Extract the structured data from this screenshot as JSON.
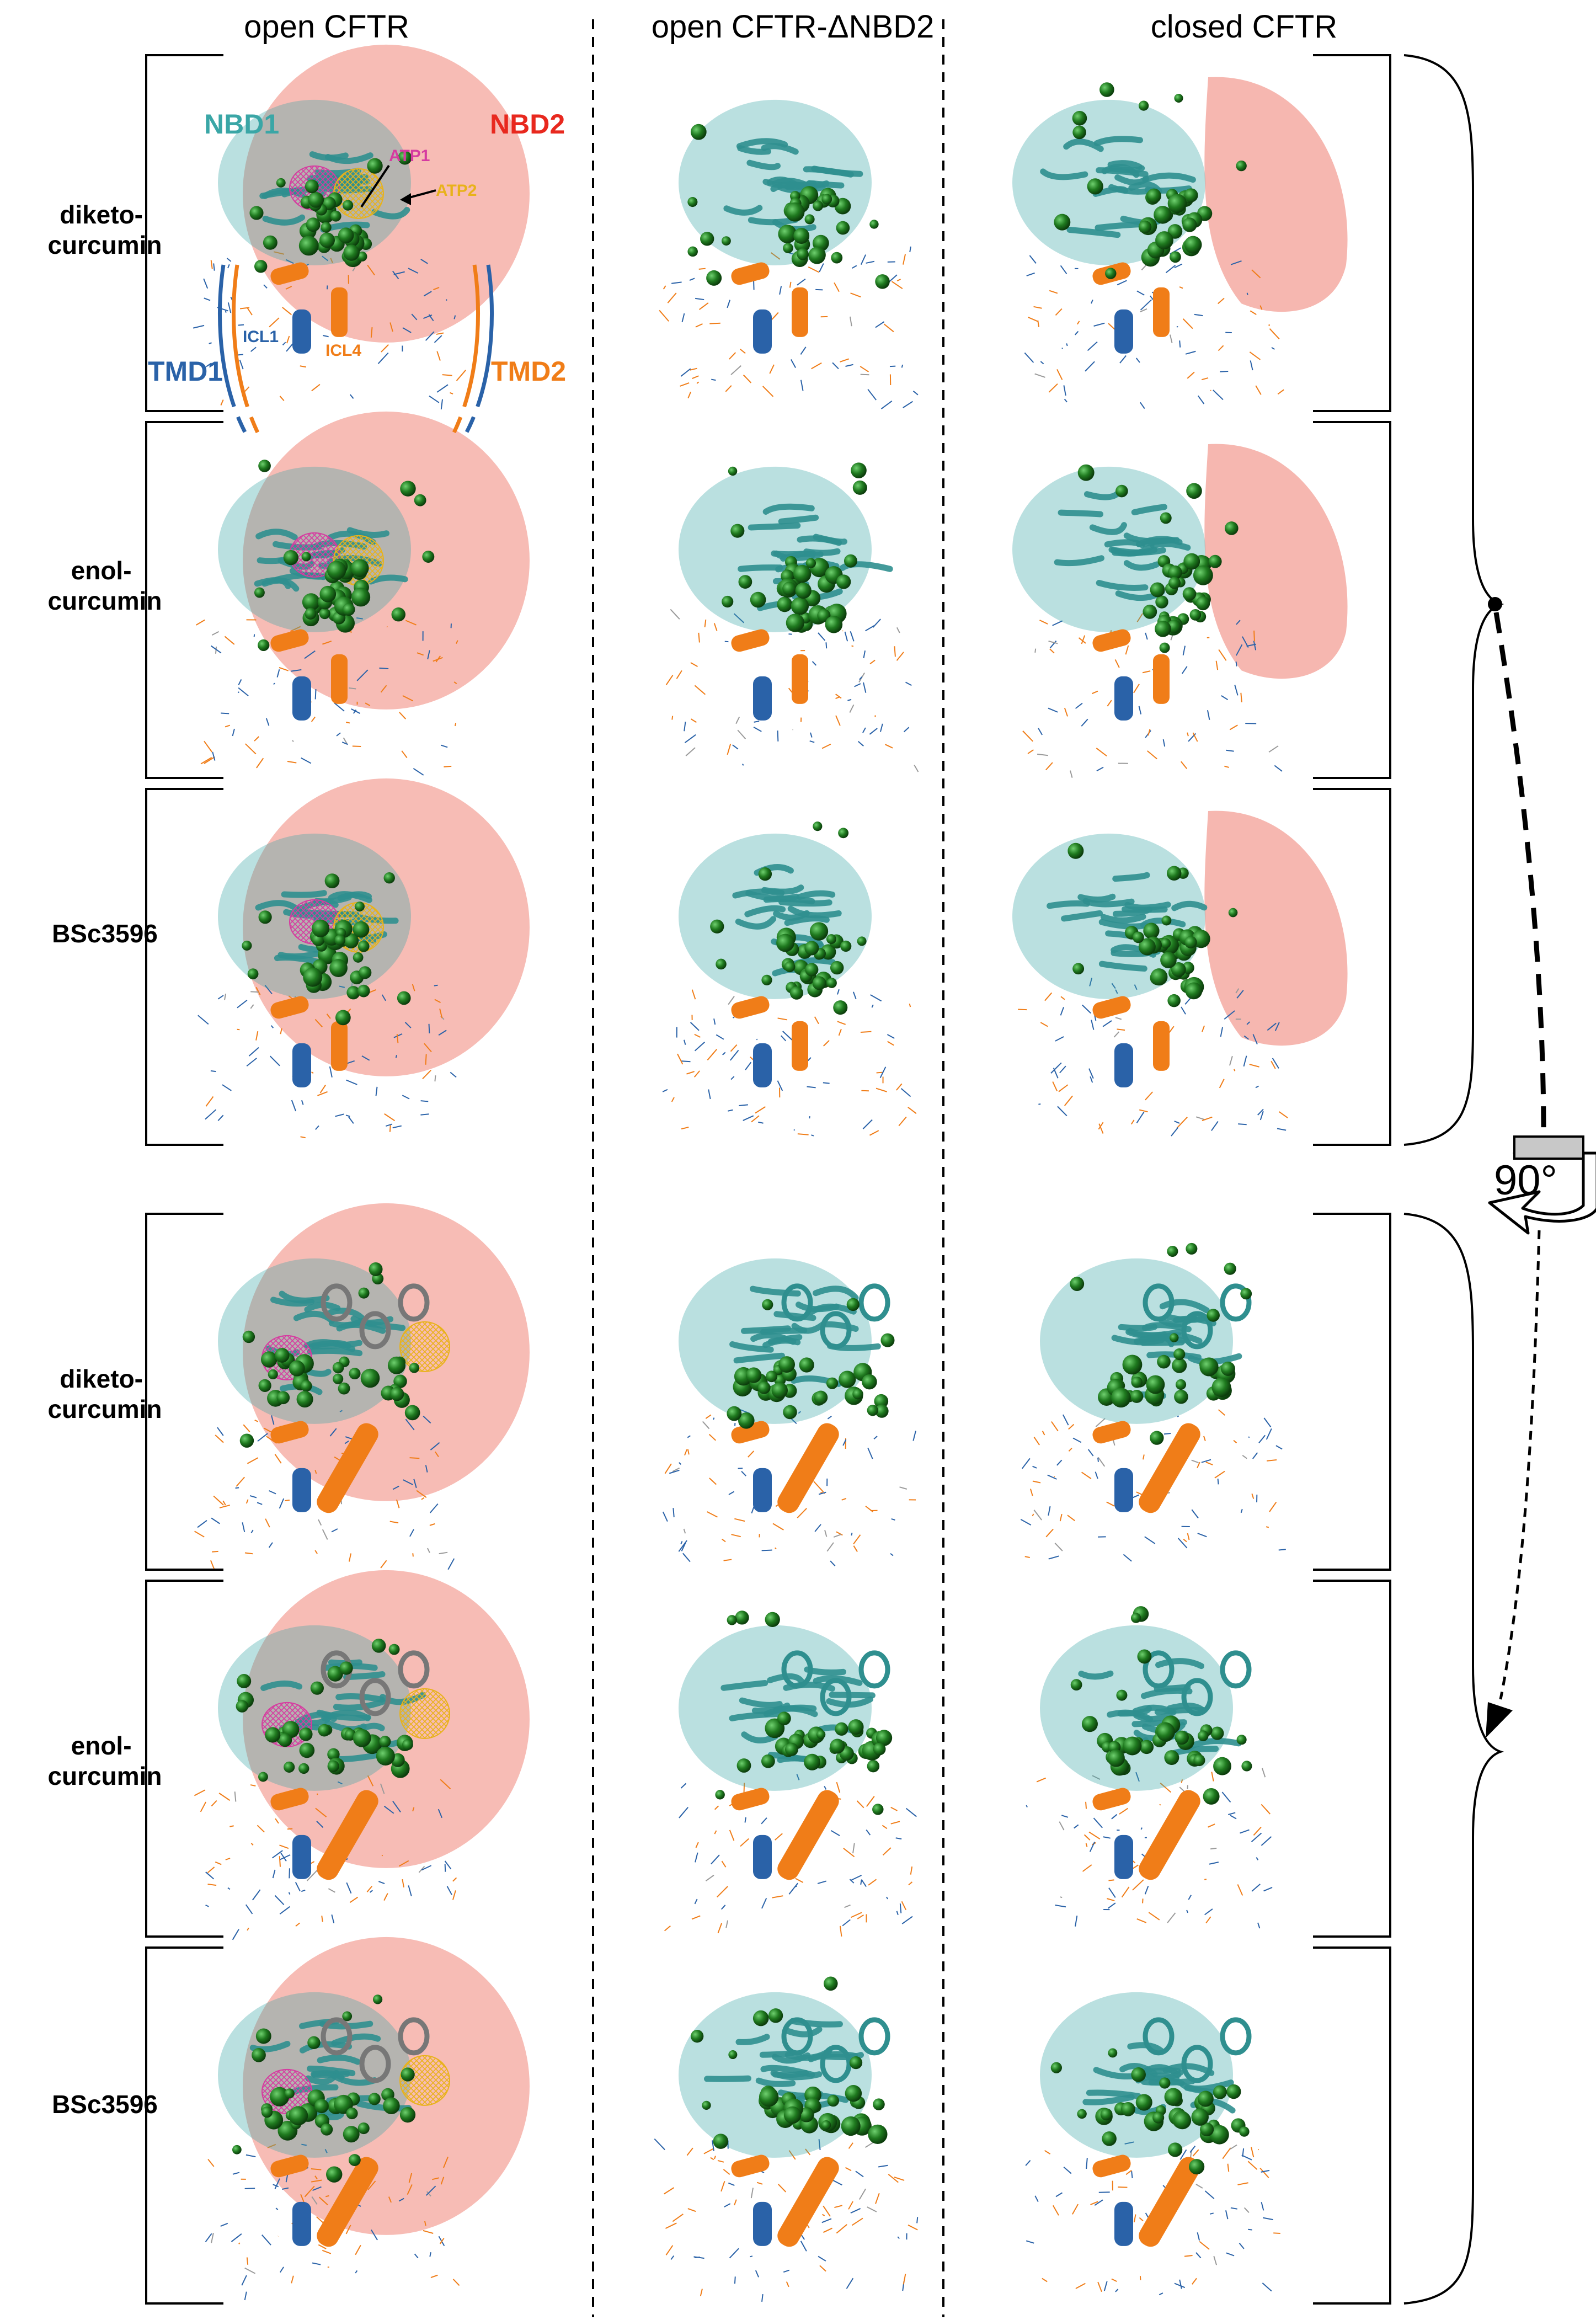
{
  "columns": [
    {
      "title": "open CFTR"
    },
    {
      "title": "open CFTR-ΔNBD2"
    },
    {
      "title": "closed CFTR"
    }
  ],
  "top_group": {
    "rows": [
      {
        "label_lines": [
          "diketo-",
          "curcumin"
        ]
      },
      {
        "label_lines": [
          "enol-",
          "curcumin"
        ]
      },
      {
        "label_lines": [
          "BSc3596"
        ]
      }
    ]
  },
  "bottom_group": {
    "rows": [
      {
        "label_lines": [
          "diketo-",
          "curcumin"
        ]
      },
      {
        "label_lines": [
          "enol-",
          "curcumin"
        ]
      },
      {
        "label_lines": [
          "BSc3596"
        ]
      }
    ]
  },
  "annotations": {
    "nbd1": "NBD1",
    "nbd2": "NBD2",
    "atp1": "ATP1",
    "atp2": "ATP2",
    "tmd1": "TMD1",
    "tmd2": "TMD2",
    "icl1": "ICL1",
    "icl4": "ICL4"
  },
  "rotation_label": "90°",
  "colors": {
    "nbd1": "#3aa6a6",
    "nbd2": "#e8281e",
    "nbd2_surface": "#f4a59c",
    "atp1": "#d63ba0",
    "atp2": "#e8b21a",
    "tmd1": "#2a62a8",
    "tmd2": "#f07d18",
    "ligand": "#1f7a1f"
  }
}
